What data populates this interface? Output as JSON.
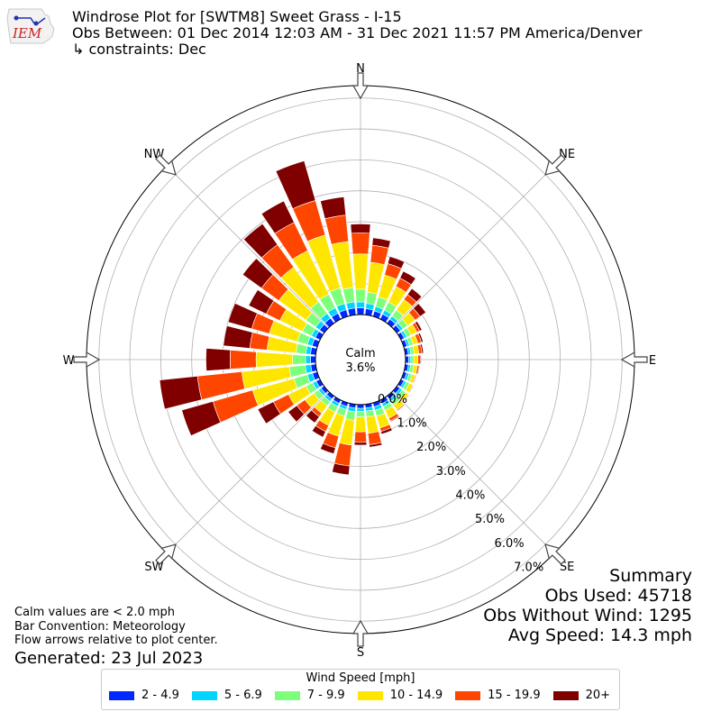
{
  "header": {
    "title_line1": "Windrose Plot for [SWTM8] Sweet Grass - I-15",
    "title_line2": "Obs Between: 01 Dec 2014 12:03 AM - 31 Dec 2021 11:57 PM America/Denver",
    "title_line3": "↳ constraints: Dec",
    "logo_text": "IEM"
  },
  "summary": {
    "heading": "Summary",
    "obs_used": "Obs Used: 45718",
    "obs_without_wind": "Obs Without Wind: 1295",
    "avg_speed": "Avg Speed: 14.3 mph"
  },
  "notes": {
    "line1": "Calm values are < 2.0 mph",
    "line2": "Bar Convention: Meteorology",
    "line3": "Flow arrows relative to plot center.",
    "generated": "Generated: 23 Jul 2023"
  },
  "legend": {
    "title": "Wind Speed [mph]",
    "items": [
      {
        "label": "2 - 4.9",
        "color": "#0028ff"
      },
      {
        "label": "5 - 6.9",
        "color": "#00d4ff"
      },
      {
        "label": "7 - 9.9",
        "color": "#7cff7a"
      },
      {
        "label": "10 - 14.9",
        "color": "#ffe600"
      },
      {
        "label": "15 - 19.9",
        "color": "#ff4600"
      },
      {
        "label": "20+",
        "color": "#800000"
      }
    ]
  },
  "chart_data": {
    "type": "windrose",
    "calm_label": "Calm",
    "calm_value": "3.6%",
    "directions": [
      "N",
      "NE",
      "E",
      "SE",
      "S",
      "SW",
      "W",
      "NW"
    ],
    "radial_ticks": [
      "0.0%",
      "1.0%",
      "2.0%",
      "3.0%",
      "4.0%",
      "5.0%",
      "6.0%",
      "7.0%"
    ],
    "rmax": 7.4,
    "bins": [
      "2 - 4.9",
      "5 - 6.9",
      "7 - 9.9",
      "10 - 14.9",
      "15 - 19.9",
      "20+"
    ],
    "sectors": [
      {
        "dir": 0,
        "values": [
          0.22,
          0.19,
          0.41,
          1.14,
          0.68,
          0.29
        ]
      },
      {
        "dir": 10,
        "values": [
          0.2,
          0.17,
          0.36,
          0.98,
          0.55,
          0.24
        ]
      },
      {
        "dir": 20,
        "values": [
          0.18,
          0.15,
          0.32,
          0.74,
          0.38,
          0.24
        ]
      },
      {
        "dir": 30,
        "values": [
          0.18,
          0.14,
          0.29,
          0.56,
          0.3,
          0.25
        ]
      },
      {
        "dir": 40,
        "values": [
          0.16,
          0.12,
          0.24,
          0.42,
          0.2,
          0.24
        ]
      },
      {
        "dir": 50,
        "values": [
          0.14,
          0.1,
          0.18,
          0.3,
          0.2,
          0.23
        ]
      },
      {
        "dir": 60,
        "values": [
          0.12,
          0.09,
          0.14,
          0.22,
          0.1,
          0.08
        ]
      },
      {
        "dir": 70,
        "values": [
          0.11,
          0.08,
          0.12,
          0.16,
          0.12,
          0.06
        ]
      },
      {
        "dir": 80,
        "values": [
          0.1,
          0.08,
          0.11,
          0.15,
          0.1,
          0.05
        ]
      },
      {
        "dir": 90,
        "values": [
          0.1,
          0.07,
          0.1,
          0.13,
          0.08,
          0.03
        ]
      },
      {
        "dir": 100,
        "values": [
          0.1,
          0.07,
          0.1,
          0.12,
          0.06,
          0.02
        ]
      },
      {
        "dir": 110,
        "values": [
          0.1,
          0.08,
          0.1,
          0.11,
          0.03,
          0.01
        ]
      },
      {
        "dir": 120,
        "values": [
          0.11,
          0.08,
          0.11,
          0.12,
          0.03,
          0.01
        ]
      },
      {
        "dir": 130,
        "values": [
          0.12,
          0.09,
          0.12,
          0.13,
          0.03,
          0.01
        ]
      },
      {
        "dir": 140,
        "values": [
          0.12,
          0.1,
          0.14,
          0.19,
          0.04,
          0.02
        ]
      },
      {
        "dir": 150,
        "values": [
          0.13,
          0.1,
          0.14,
          0.28,
          0.1,
          0.03
        ]
      },
      {
        "dir": 160,
        "values": [
          0.13,
          0.12,
          0.2,
          0.39,
          0.12,
          0.09
        ]
      },
      {
        "dir": 170,
        "values": [
          0.12,
          0.1,
          0.18,
          0.54,
          0.37,
          0.08
        ]
      },
      {
        "dir": 180,
        "values": [
          0.12,
          0.1,
          0.18,
          0.48,
          0.34,
          0.09
        ]
      },
      {
        "dir": 190,
        "values": [
          0.12,
          0.12,
          0.28,
          0.8,
          0.68,
          0.29
        ]
      },
      {
        "dir": 200,
        "values": [
          0.12,
          0.1,
          0.22,
          0.68,
          0.39,
          0.2
        ]
      },
      {
        "dir": 210,
        "values": [
          0.12,
          0.11,
          0.2,
          0.48,
          0.22,
          0.2
        ]
      },
      {
        "dir": 220,
        "values": [
          0.12,
          0.1,
          0.16,
          0.3,
          0.14,
          0.25
        ]
      },
      {
        "dir": 230,
        "values": [
          0.12,
          0.1,
          0.18,
          0.36,
          0.32,
          0.35
        ]
      },
      {
        "dir": 240,
        "values": [
          0.14,
          0.12,
          0.24,
          0.63,
          0.54,
          0.56
        ]
      },
      {
        "dir": 250,
        "values": [
          0.16,
          0.17,
          0.45,
          1.39,
          1.33,
          1.05
        ]
      },
      {
        "dir": 260,
        "values": [
          0.16,
          0.18,
          0.52,
          1.54,
          1.44,
          1.23
        ]
      },
      {
        "dir": 270,
        "values": [
          0.16,
          0.16,
          0.42,
          1.18,
          0.84,
          0.78
        ]
      },
      {
        "dir": 280,
        "values": [
          0.17,
          0.15,
          0.32,
          0.94,
          0.56,
          0.86
        ]
      },
      {
        "dir": 290,
        "values": [
          0.17,
          0.16,
          0.34,
          0.94,
          0.59,
          0.79
        ]
      },
      {
        "dir": 300,
        "values": [
          0.17,
          0.14,
          0.32,
          0.81,
          0.49,
          0.63
        ]
      },
      {
        "dir": 310,
        "values": [
          0.18,
          0.16,
          0.38,
          1.08,
          0.69,
          0.75
        ]
      },
      {
        "dir": 320,
        "values": [
          0.2,
          0.19,
          0.46,
          1.38,
          0.9,
          0.83
        ]
      },
      {
        "dir": 330,
        "values": [
          0.21,
          0.2,
          0.48,
          1.57,
          1.01,
          0.77
        ]
      },
      {
        "dir": 340,
        "values": [
          0.22,
          0.21,
          0.52,
          1.78,
          1.16,
          1.33
        ]
      },
      {
        "dir": 350,
        "values": [
          0.22,
          0.2,
          0.46,
          1.5,
          0.86,
          0.59
        ]
      }
    ]
  }
}
